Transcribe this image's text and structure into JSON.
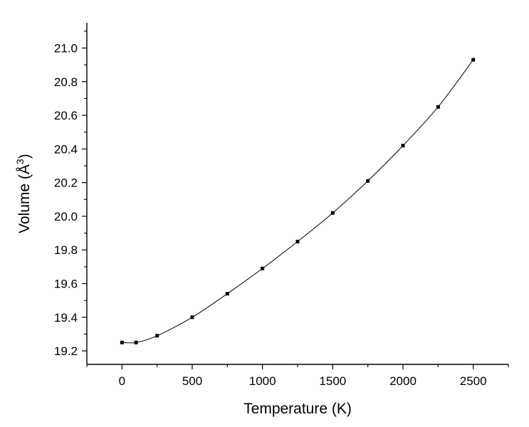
{
  "chart_data": {
    "type": "line",
    "xlabel": "Temperature (K)",
    "ylabel": {
      "text": "Volume (Å",
      "superscript": "3",
      "suffix": ")"
    },
    "xlim": [
      -250,
      2750
    ],
    "ylim": [
      19.12,
      21.15
    ],
    "x_ticks": [
      0,
      500,
      1000,
      1500,
      2000,
      2500
    ],
    "x_tick_labels": [
      "0",
      "500",
      "1000",
      "1500",
      "2000",
      "2500"
    ],
    "x_minor_ticks": [
      -250,
      250,
      750,
      1250,
      1750,
      2250,
      2750
    ],
    "y_ticks": [
      19.2,
      19.4,
      19.6,
      19.8,
      20.0,
      20.2,
      20.4,
      20.6,
      20.8,
      21.0
    ],
    "y_tick_labels": [
      "19.2",
      "19.4",
      "19.6",
      "19.8",
      "20.0",
      "20.2",
      "20.4",
      "20.6",
      "20.8",
      "21.0"
    ],
    "y_minor_ticks": [
      19.3,
      19.5,
      19.7,
      19.9,
      20.1,
      20.3,
      20.5,
      20.7,
      20.9,
      21.1
    ],
    "grid": false,
    "legend": "none",
    "series": [
      {
        "x": [
          0,
          100,
          250,
          500,
          750,
          1000,
          1250,
          1500,
          1750,
          2000,
          2250,
          2500
        ],
        "y": [
          19.25,
          19.25,
          19.29,
          19.4,
          19.54,
          19.69,
          19.85,
          20.02,
          20.21,
          20.42,
          20.65,
          20.93
        ],
        "marker": "square",
        "color": "#000000"
      }
    ]
  }
}
